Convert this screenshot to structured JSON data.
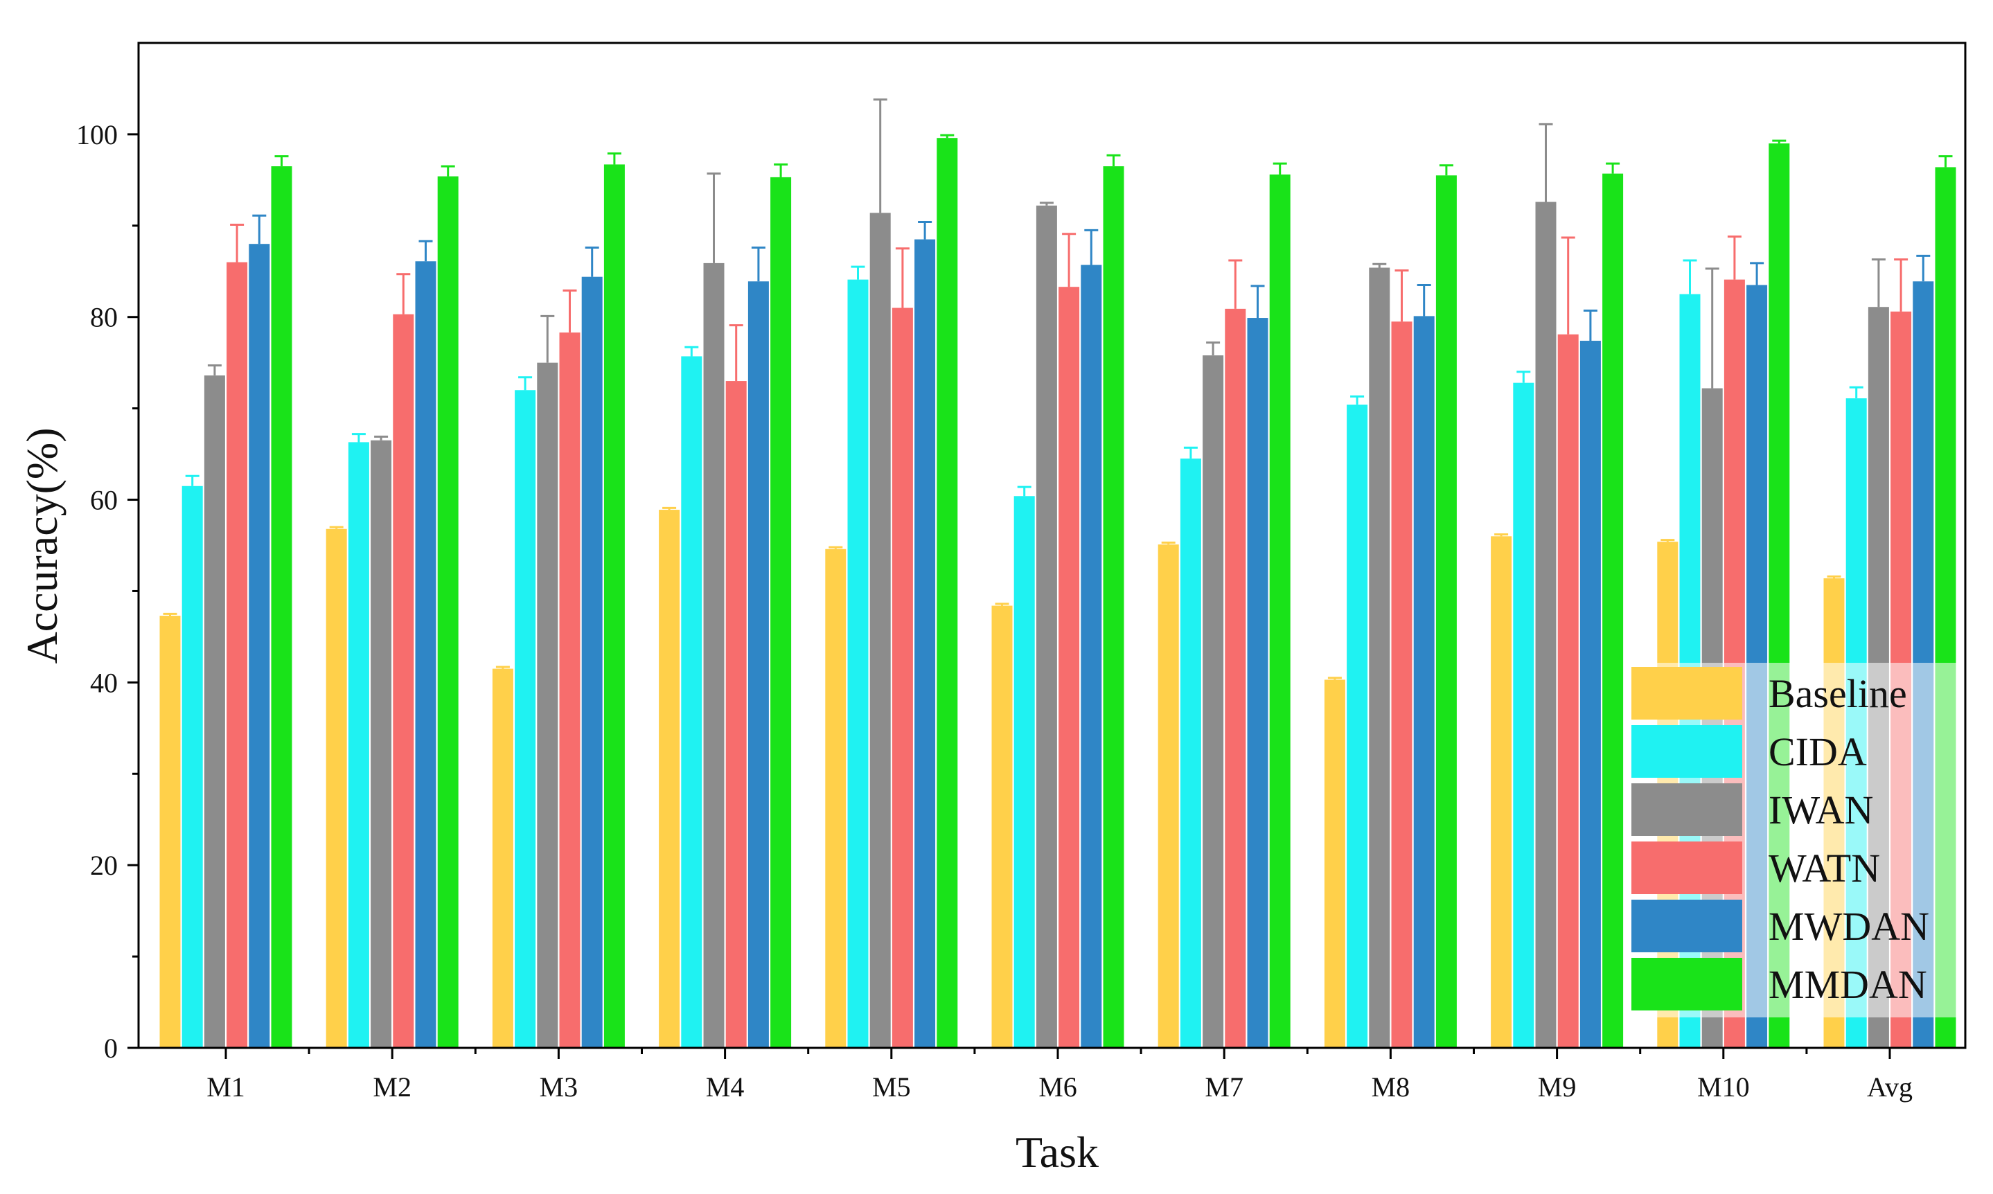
{
  "chart_data": {
    "type": "bar",
    "xlabel": "Task",
    "ylabel": "Accuracy(%)",
    "ylim": [
      0,
      110
    ],
    "yticks": [
      0,
      20,
      40,
      60,
      80,
      100
    ],
    "grid": false,
    "legend_position": "bottom-right",
    "categories": [
      "M1",
      "M2",
      "M3",
      "M4",
      "M5",
      "M6",
      "M7",
      "M8",
      "M9",
      "M10",
      "Avg"
    ],
    "series": [
      {
        "name": "Baseline",
        "color": "#ffd04a",
        "values": [
          47.3,
          56.8,
          41.5,
          58.9,
          54.6,
          48.4,
          55.1,
          40.3,
          56.0,
          55.4,
          51.4
        ],
        "errors": [
          0.2,
          0.2,
          0.2,
          0.2,
          0.2,
          0.2,
          0.2,
          0.2,
          0.2,
          0.2,
          0.2
        ]
      },
      {
        "name": "CIDA",
        "color": "#1ff2f2",
        "values": [
          61.5,
          66.3,
          72.0,
          75.7,
          84.1,
          60.4,
          64.5,
          70.4,
          72.8,
          82.5,
          71.1
        ],
        "errors": [
          1.1,
          0.9,
          1.4,
          1.0,
          1.4,
          1.0,
          1.2,
          0.9,
          1.2,
          3.7,
          1.2
        ]
      },
      {
        "name": "IWAN",
        "color": "#8c8c8c",
        "values": [
          73.6,
          66.5,
          75.0,
          85.9,
          91.4,
          92.2,
          75.8,
          85.4,
          92.6,
          72.2,
          81.1
        ],
        "errors": [
          1.1,
          0.4,
          5.1,
          9.8,
          12.4,
          0.3,
          1.4,
          0.4,
          8.5,
          13.1,
          5.2
        ]
      },
      {
        "name": "WATN",
        "color": "#f76d6d",
        "values": [
          86.0,
          80.3,
          78.3,
          73.0,
          81.0,
          83.3,
          80.9,
          79.5,
          78.1,
          84.1,
          80.6
        ],
        "errors": [
          4.1,
          4.4,
          4.6,
          6.1,
          6.5,
          5.8,
          5.3,
          5.6,
          10.6,
          4.7,
          5.7
        ]
      },
      {
        "name": "MWDAN",
        "color": "#2f86c6",
        "values": [
          88.0,
          86.1,
          84.4,
          83.9,
          88.5,
          85.7,
          79.9,
          80.1,
          77.4,
          83.5,
          83.9
        ],
        "errors": [
          3.1,
          2.2,
          3.2,
          3.7,
          1.9,
          3.8,
          3.5,
          3.4,
          3.3,
          2.4,
          2.8
        ]
      },
      {
        "name": "MMDAN",
        "color": "#19e319",
        "values": [
          96.5,
          95.4,
          96.7,
          95.3,
          99.6,
          96.5,
          95.6,
          95.5,
          95.7,
          99.0,
          96.4
        ],
        "errors": [
          1.1,
          1.1,
          1.2,
          1.4,
          0.3,
          1.2,
          1.2,
          1.1,
          1.1,
          0.3,
          1.2
        ]
      }
    ]
  }
}
